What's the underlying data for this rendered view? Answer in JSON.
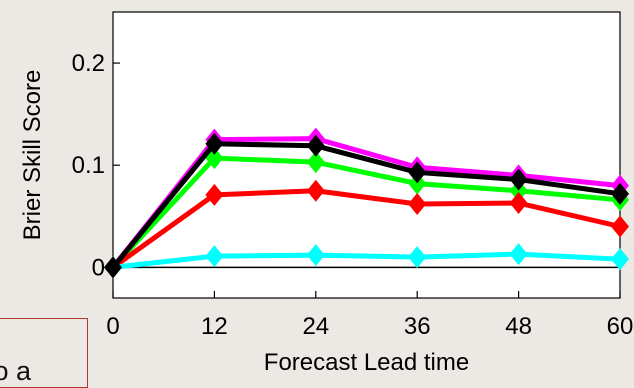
{
  "chart_data": {
    "type": "line",
    "xlabel": "Forecast Lead time",
    "ylabel": "Brier Skill Score",
    "xlim": [
      0,
      60
    ],
    "ylim": [
      -0.03,
      0.25
    ],
    "xticks": [
      "0",
      "12",
      "24",
      "36",
      "48",
      "60"
    ],
    "yticks": [
      "0",
      "0.1",
      "0.2"
    ],
    "x": [
      0,
      12,
      24,
      36,
      48,
      60
    ],
    "series": [
      {
        "color": "#ff00ff",
        "values": [
          0,
          0.125,
          0.126,
          0.098,
          0.09,
          0.08
        ]
      },
      {
        "color": "#00ff00",
        "values": [
          0,
          0.107,
          0.103,
          0.082,
          0.075,
          0.066
        ]
      },
      {
        "color": "#ff0000",
        "values": [
          0,
          0.071,
          0.075,
          0.062,
          0.063,
          0.04
        ]
      },
      {
        "color": "#00ffff",
        "values": [
          0,
          0.011,
          0.012,
          0.01,
          0.013,
          0.008
        ]
      },
      {
        "color": "#000000",
        "values": [
          0,
          0.121,
          0.119,
          0.093,
          0.086,
          0.072
        ]
      }
    ],
    "zero_line": true,
    "grid": false,
    "legend": "none"
  },
  "overlay": {
    "text": "to a"
  }
}
